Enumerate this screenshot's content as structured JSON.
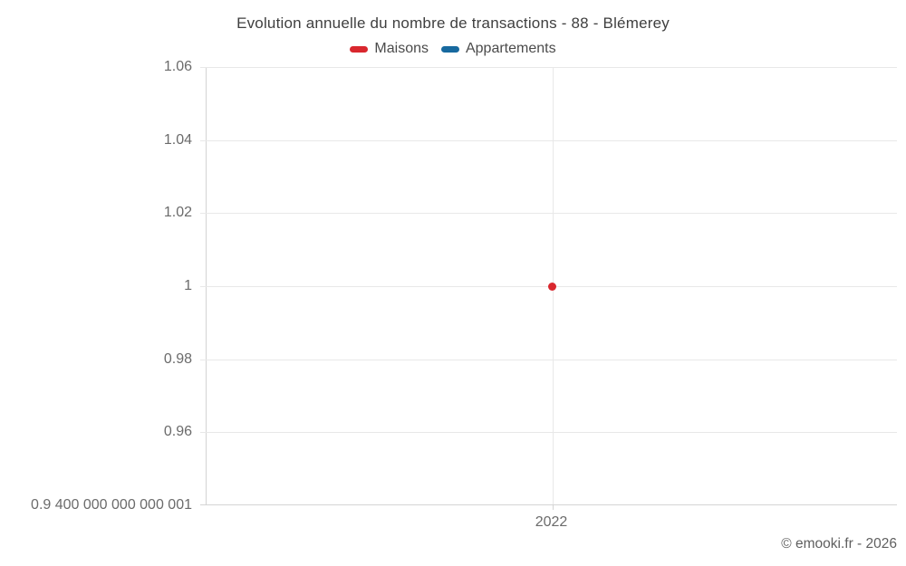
{
  "chart": {
    "title": "Evolution annuelle du nombre de transactions - 88 - Blémerey"
  },
  "chart_data": {
    "type": "line",
    "title": "Evolution annuelle du nombre de transactions - 88 - Blémerey",
    "categories": [
      "2022"
    ],
    "series": [
      {
        "name": "Maisons",
        "color": "#d9272e",
        "values": [
          1
        ]
      },
      {
        "name": "Appartements",
        "color": "#17699f",
        "values": [
          null
        ]
      }
    ],
    "ylim": [
      0.9400000000000001,
      1.06
    ],
    "y_ticks": [
      {
        "value": 1.06,
        "label": "1.06"
      },
      {
        "value": 1.04,
        "label": "1.04"
      },
      {
        "value": 1.02,
        "label": "1.02"
      },
      {
        "value": 1.0,
        "label": "1"
      },
      {
        "value": 0.98,
        "label": "0.98"
      },
      {
        "value": 0.96,
        "label": "0.96"
      },
      {
        "value": 0.9400000000000001,
        "label": "0.9 400 000 000 000 001"
      }
    ],
    "xlabel": "",
    "ylabel": "",
    "grid": true,
    "legend_position": "top",
    "colors": {
      "gridline": "#e8e8e8",
      "axis_line": "#d4d4d4",
      "tick_label": "#6b6b6b",
      "title_text": "#3f3f3f",
      "legend_text": "#4b4b4b"
    }
  },
  "footer": {
    "copyright": "© emooki.fr - 2026"
  }
}
